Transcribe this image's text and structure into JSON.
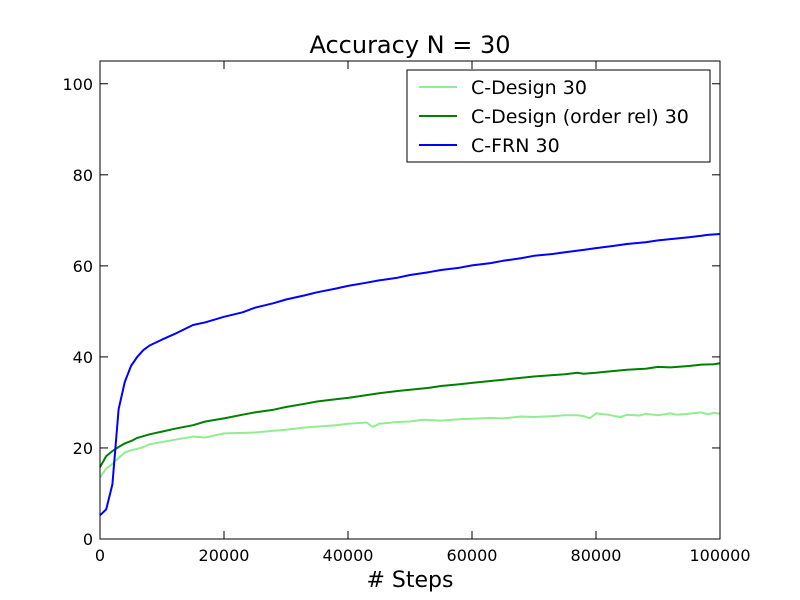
{
  "chart_data": {
    "type": "line",
    "title": "Accuracy N = 30",
    "xlabel": "# Steps",
    "ylabel": "",
    "xlim": [
      0,
      100000
    ],
    "ylim": [
      0,
      105
    ],
    "xticks": [
      0,
      20000,
      40000,
      60000,
      80000,
      100000
    ],
    "yticks": [
      0,
      20,
      40,
      60,
      80,
      100
    ],
    "grid": false,
    "legend_position": "top-right",
    "series": [
      {
        "name": "C-Design 30",
        "color": "#90ee90",
        "x": [
          0,
          1000,
          2000,
          3000,
          4000,
          5000,
          6000,
          7000,
          8000,
          10000,
          12000,
          15000,
          17000,
          20000,
          23000,
          25000,
          28000,
          30000,
          33000,
          35000,
          38000,
          40000,
          43000,
          44000,
          45000,
          48000,
          50000,
          52000,
          55000,
          58000,
          60000,
          63000,
          65000,
          68000,
          70000,
          73000,
          75000,
          77000,
          78000,
          79000,
          80000,
          82000,
          83000,
          84000,
          85000,
          87000,
          88000,
          90000,
          92000,
          93000,
          95000,
          97000,
          98000,
          99000,
          100000
        ],
        "values": [
          13.5,
          15.5,
          16.5,
          17.8,
          19,
          19.5,
          19.8,
          20.2,
          20.8,
          21.3,
          21.8,
          22.5,
          22.3,
          23.2,
          23.3,
          23.4,
          23.8,
          24.0,
          24.5,
          24.7,
          25.0,
          25.3,
          25.6,
          24.6,
          25.3,
          25.7,
          25.8,
          26.2,
          26.0,
          26.3,
          26.4,
          26.6,
          26.5,
          26.9,
          26.8,
          27.0,
          27.2,
          27.2,
          27.0,
          26.5,
          27.6,
          27.3,
          27.0,
          26.8,
          27.3,
          27.1,
          27.5,
          27.2,
          27.6,
          27.3,
          27.5,
          27.8,
          27.4,
          27.7,
          27.5
        ]
      },
      {
        "name": "C-Design (order rel) 30",
        "color": "#008000",
        "x": [
          0,
          1000,
          2000,
          3000,
          4000,
          5000,
          6000,
          8000,
          10000,
          12000,
          15000,
          17000,
          20000,
          23000,
          25000,
          28000,
          30000,
          33000,
          35000,
          38000,
          40000,
          43000,
          45000,
          48000,
          50000,
          53000,
          55000,
          58000,
          60000,
          63000,
          65000,
          68000,
          70000,
          73000,
          75000,
          77000,
          78000,
          80000,
          82000,
          85000,
          88000,
          90000,
          92000,
          95000,
          97000,
          99000,
          100000
        ],
        "values": [
          15.8,
          18.2,
          19.3,
          20.2,
          21.0,
          21.5,
          22.2,
          23.0,
          23.6,
          24.2,
          25.0,
          25.8,
          26.5,
          27.3,
          27.8,
          28.4,
          29.0,
          29.7,
          30.2,
          30.7,
          31.0,
          31.6,
          32.0,
          32.5,
          32.8,
          33.2,
          33.6,
          34.0,
          34.3,
          34.7,
          35.0,
          35.4,
          35.7,
          36.0,
          36.2,
          36.5,
          36.3,
          36.5,
          36.8,
          37.2,
          37.4,
          37.8,
          37.7,
          38.0,
          38.3,
          38.4,
          38.6
        ]
      },
      {
        "name": "C-FRN 30",
        "color": "#0000ff",
        "x": [
          0,
          1000,
          2000,
          3000,
          4000,
          5000,
          6000,
          7000,
          8000,
          10000,
          12000,
          15000,
          17000,
          20000,
          23000,
          25000,
          28000,
          30000,
          33000,
          35000,
          38000,
          40000,
          43000,
          45000,
          48000,
          50000,
          53000,
          55000,
          58000,
          60000,
          63000,
          65000,
          68000,
          70000,
          73000,
          75000,
          78000,
          80000,
          83000,
          85000,
          88000,
          90000,
          93000,
          95000,
          97000,
          98000,
          100000
        ],
        "values": [
          5.2,
          6.5,
          12.0,
          28.5,
          34.5,
          38.0,
          40.0,
          41.5,
          42.5,
          43.8,
          45.0,
          47.0,
          47.6,
          48.8,
          49.8,
          50.8,
          51.8,
          52.6,
          53.5,
          54.2,
          55.0,
          55.6,
          56.3,
          56.8,
          57.4,
          58.0,
          58.6,
          59.1,
          59.6,
          60.1,
          60.6,
          61.1,
          61.7,
          62.2,
          62.6,
          63.0,
          63.5,
          63.9,
          64.4,
          64.8,
          65.2,
          65.6,
          66.0,
          66.3,
          66.6,
          66.8,
          67.0
        ]
      }
    ]
  }
}
